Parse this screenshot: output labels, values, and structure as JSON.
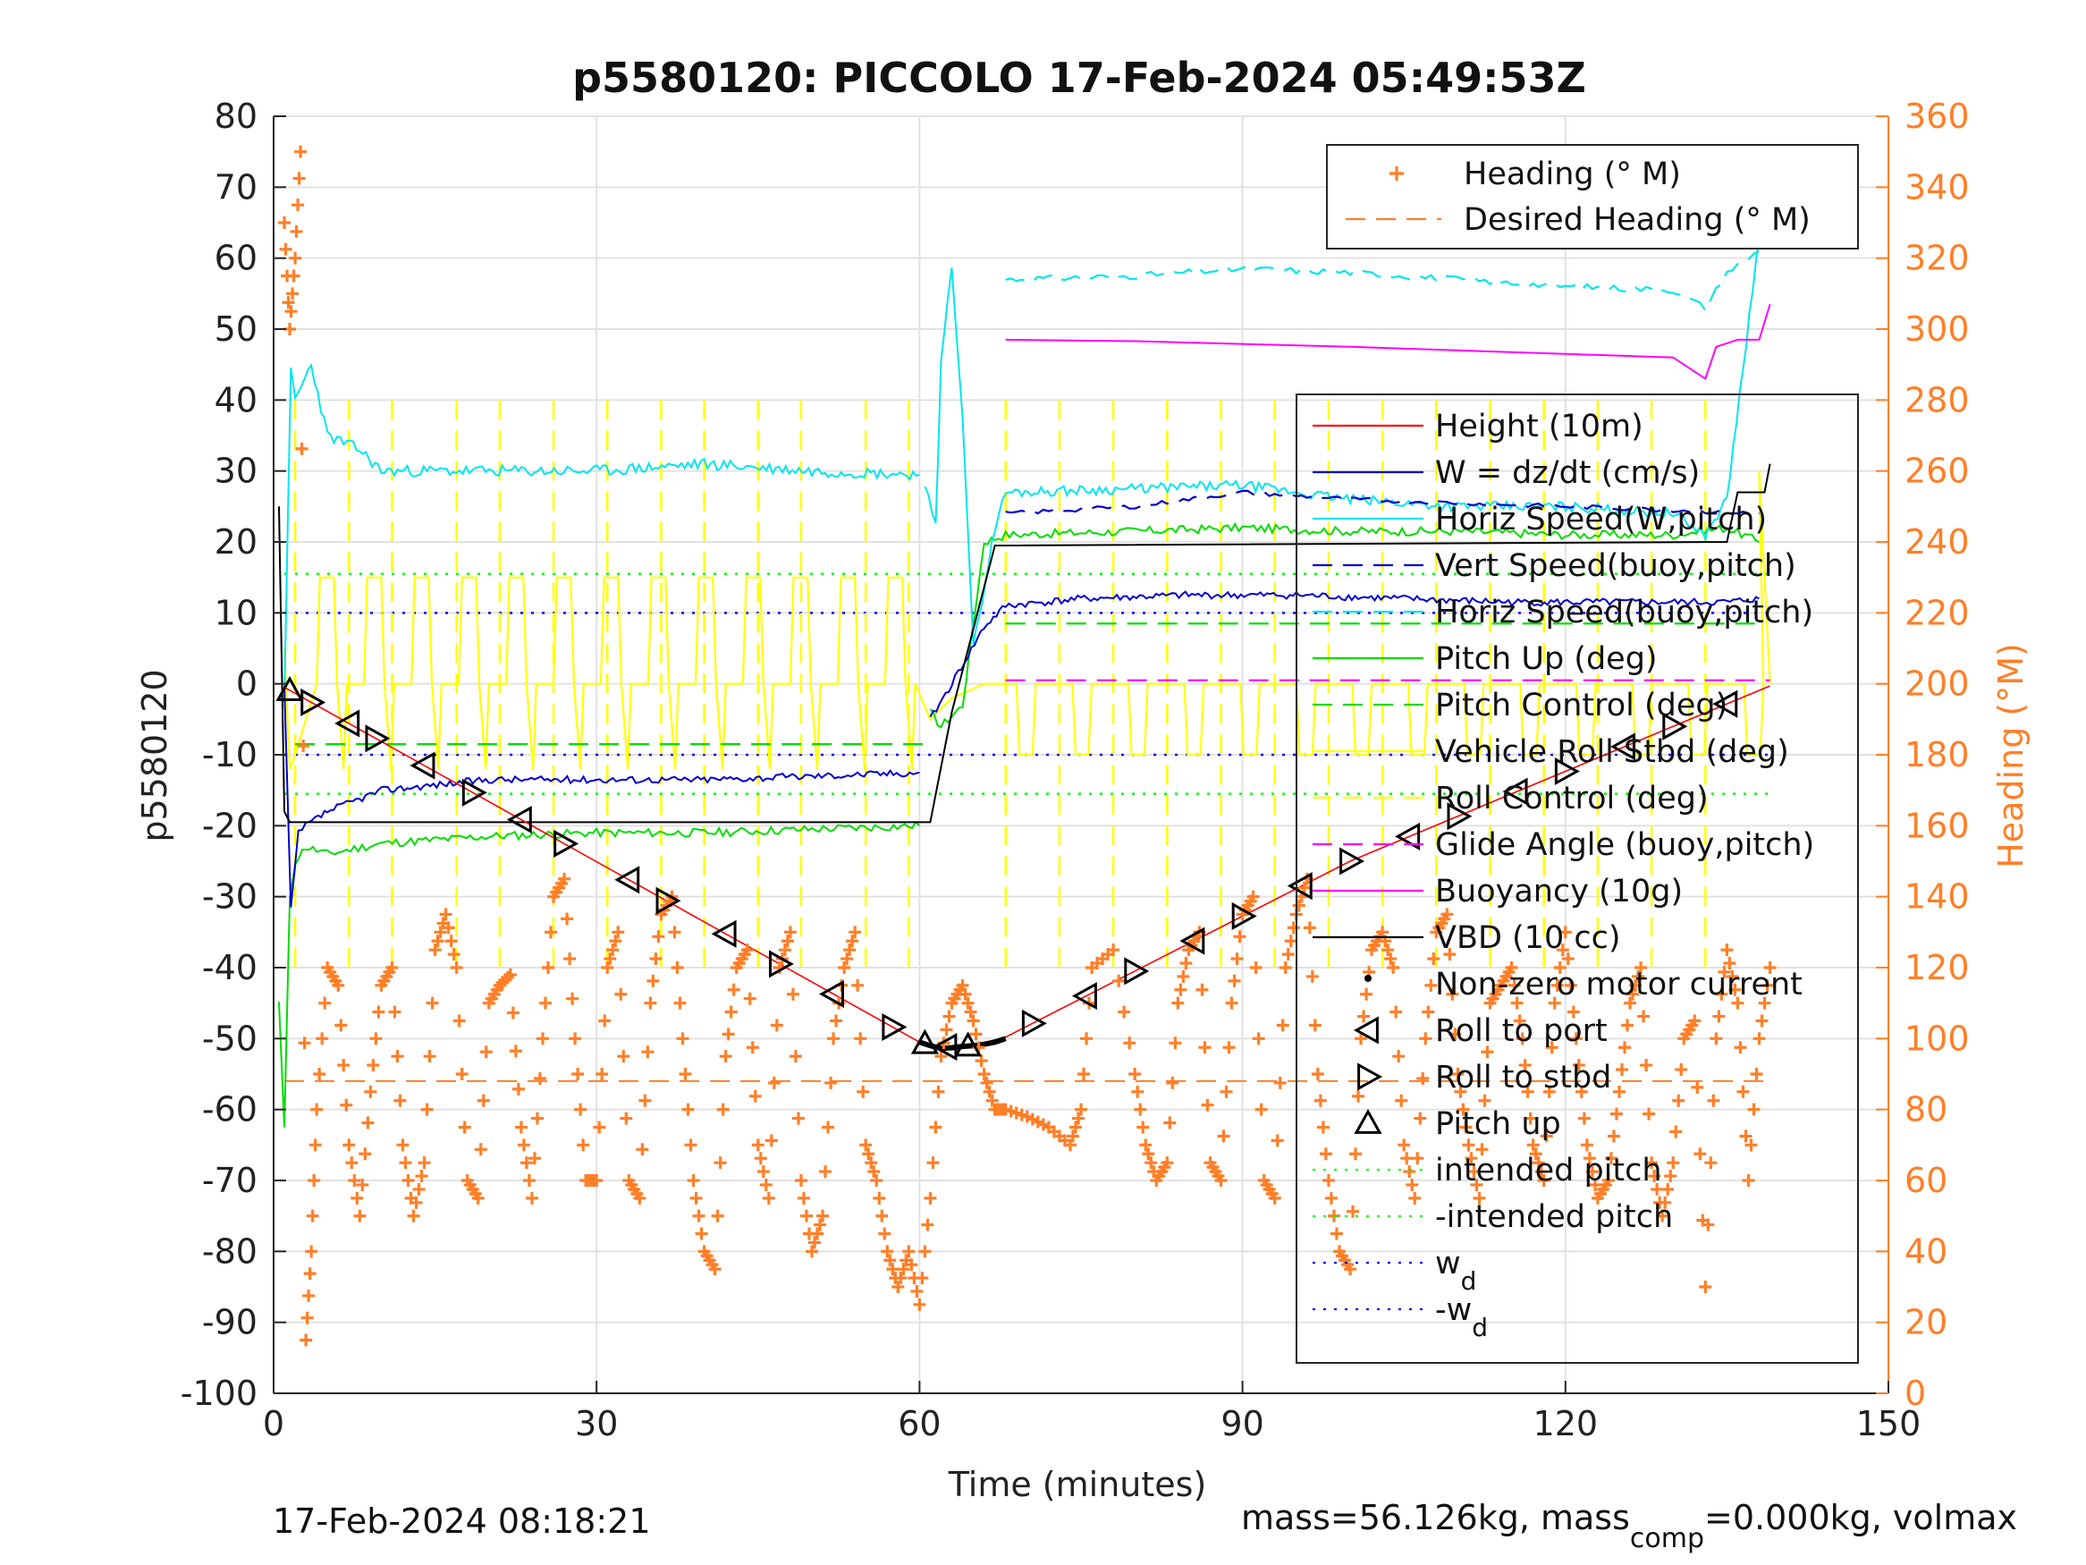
{
  "chart_data": {
    "type": "line",
    "title": "p5580120: PICCOLO 17-Feb-2024 05:49:53Z",
    "xlabel": "Time (minutes)",
    "ylabel": "p5580120",
    "y2label": "Heading (°M)",
    "xlim": [
      0,
      150
    ],
    "ylim": [
      -100,
      80
    ],
    "y2lim": [
      0,
      360
    ],
    "xticks": [
      0,
      30,
      60,
      90,
      120,
      150
    ],
    "yticks": [
      80,
      70,
      60,
      50,
      40,
      30,
      20,
      10,
      0,
      -10,
      -20,
      -30,
      -40,
      -50,
      -60,
      -70,
      -80,
      -90,
      -100
    ],
    "y2ticks": [
      360,
      340,
      320,
      300,
      280,
      260,
      240,
      220,
      200,
      180,
      160,
      140,
      120,
      100,
      80,
      60,
      40,
      20,
      0
    ],
    "grid": true,
    "legend_heading": [
      {
        "label": "Heading (° M)",
        "color": "#ff7f27",
        "marker": "+"
      },
      {
        "label": "Desired Heading (° M)",
        "color": "#ff7f27",
        "style": "dashed"
      }
    ],
    "legend_main": [
      {
        "label": "Height (10m)",
        "color": "#ff0000",
        "style": "solid"
      },
      {
        "label": "W = dz/dt (cm/s)",
        "color": "#0000cc",
        "style": "solid"
      },
      {
        "label": "Horiz Speed(W,pitch)",
        "color": "#00e5ee",
        "style": "solid"
      },
      {
        "label": "Vert Speed(buoy,pitch)",
        "color": "#0000cc",
        "style": "dashed"
      },
      {
        "label": "Horiz Speed(buoy,pitch)",
        "color": "#00e5ee",
        "style": "dashed"
      },
      {
        "label": "Pitch Up (deg)",
        "color": "#00dd00",
        "style": "solid"
      },
      {
        "label": "Pitch Control (deg)",
        "color": "#00dd00",
        "style": "dashed"
      },
      {
        "label": "Vehicle Roll Stbd (deg)",
        "color": "#ffff00",
        "style": "solid"
      },
      {
        "label": "Roll Control (deg)",
        "color": "#ffff00",
        "style": "dashed"
      },
      {
        "label": "Glide Angle (buoy,pitch)",
        "color": "#ff00ff",
        "style": "dashed"
      },
      {
        "label": "Buoyancy (10g)",
        "color": "#ff00ff",
        "style": "solid"
      },
      {
        "label": "VBD (10 cc)",
        "color": "#000000",
        "style": "solid"
      },
      {
        "label": "Non-zero motor current",
        "color": "#000000",
        "marker": "dot"
      },
      {
        "label": "Roll to port",
        "color": "#000000",
        "marker": "tri-left"
      },
      {
        "label": "Roll to stbd",
        "color": "#000000",
        "marker": "tri-right"
      },
      {
        "label": "Pitch up",
        "color": "#000000",
        "marker": "tri-up"
      },
      {
        "label": "intended pitch",
        "color": "#00ff00",
        "style": "dotted"
      },
      {
        "label": "-intended pitch",
        "color": "#00ff00",
        "style": "dotted"
      },
      {
        "label": "w",
        "sub": "d",
        "color": "#0000ff",
        "style": "dotted"
      },
      {
        "label": "-w",
        "sub": "d",
        "color": "#0000ff",
        "style": "dotted"
      }
    ],
    "series": {
      "height": {
        "x": [
          1,
          60,
          62,
          65,
          68,
          100,
          139
        ],
        "y": [
          -0.5,
          -50.5,
          -51.2,
          -51.0,
          -49.8,
          -25,
          -0.3
        ]
      },
      "vbd": {
        "x": [
          0.5,
          1,
          1.5,
          61,
          63,
          67,
          68,
          135,
          136,
          138.5,
          139
        ],
        "y": [
          25,
          -18,
          -19.5,
          -19.5,
          -4,
          19.5,
          19.5,
          20,
          27,
          27,
          31
        ]
      },
      "w_dive": {
        "x": [
          1,
          1.6,
          2.3,
          3,
          5,
          10,
          20,
          30,
          40,
          50,
          60
        ],
        "y": [
          -0.5,
          -32,
          -21,
          -20,
          -18,
          -15,
          -13.5,
          -13.5,
          -13.5,
          -13,
          -12.5
        ]
      },
      "w_climb": {
        "x": [
          61,
          63,
          66,
          68,
          75,
          85,
          95,
          105,
          115,
          125,
          135,
          138
        ],
        "y": [
          -5,
          0,
          8,
          11,
          12,
          12.5,
          12.5,
          12,
          11.5,
          11.5,
          11.5,
          12
        ]
      },
      "horiz_dive": {
        "x": [
          1,
          1.6,
          2,
          3.5,
          5,
          8,
          10,
          20,
          30,
          40,
          50,
          60
        ],
        "y": [
          -2,
          44,
          40,
          45,
          35,
          33,
          30,
          30,
          30,
          31,
          30,
          29.5
        ]
      },
      "horiz_climb": {
        "x": [
          60.5,
          61.5,
          62,
          63,
          64,
          65,
          67,
          68,
          80,
          90,
          100,
          110,
          120,
          130,
          133,
          135,
          138
        ],
        "y": [
          28,
          22,
          45,
          59,
          38,
          5,
          22,
          27,
          27.5,
          28,
          26,
          25,
          25,
          24,
          21,
          26,
          63
        ]
      },
      "pitch_dive": {
        "x": [
          0.5,
          1,
          1.5,
          2,
          3,
          5,
          10,
          20,
          30,
          40,
          50,
          60
        ],
        "y": [
          -45,
          -63,
          -30,
          -25,
          -23,
          -24,
          -22.5,
          -21.5,
          -21,
          -21,
          -20.5,
          -20
        ]
      },
      "pitch_climb": {
        "x": [
          61,
          62,
          64,
          66,
          68,
          80,
          90,
          100,
          110,
          120,
          130,
          135,
          138
        ],
        "y": [
          -4,
          -6,
          -3,
          20,
          21,
          21.5,
          22,
          21.5,
          21.5,
          21,
          21,
          22,
          20
        ]
      },
      "vert_speed_buoy": {
        "x": [
          68,
          80,
          90,
          100,
          110,
          120,
          130,
          138
        ],
        "y": [
          24,
          25,
          27,
          26,
          25.5,
          25,
          24.5,
          24
        ]
      },
      "horiz_speed_buoy": {
        "x": [
          68,
          80,
          90,
          100,
          110,
          120,
          130,
          133,
          135,
          138
        ],
        "y": [
          57,
          57.5,
          58.5,
          58,
          57,
          56,
          55.5,
          53,
          58,
          61
        ]
      },
      "buoyancy": {
        "x": [
          68,
          80,
          100,
          120,
          130,
          132,
          133,
          134,
          136,
          138,
          139
        ],
        "y": [
          48.5,
          48.3,
          47.5,
          46.5,
          46,
          44,
          43,
          47.5,
          48.5,
          48.5,
          53.5
        ]
      },
      "pitch_control": {
        "x": [
          2,
          61
        ],
        "y": [
          -8.5,
          -8.5
        ],
        "x2": [
          68,
          138
        ],
        "y2": [
          8.5,
          8.5
        ]
      },
      "glide_angle": {
        "x": [
          68,
          139
        ],
        "y": [
          0.5,
          0.5
        ]
      },
      "intended_pitch": [
        15.5,
        -15.5
      ],
      "w_d": [
        10,
        -10
      ],
      "roll_control_pulses": [
        2,
        7,
        11,
        17,
        21,
        26,
        31,
        36,
        40,
        45,
        49,
        55,
        59,
        68,
        73,
        78,
        83,
        88,
        93,
        98,
        103,
        108,
        113,
        118,
        123,
        128,
        133
      ],
      "roll_stbd_times": [
        3.5,
        9.5,
        18.5,
        27,
        36.5,
        47,
        57.5,
        70.5,
        80,
        90,
        100,
        110,
        120,
        130
      ],
      "roll_port_times": [
        7,
        14,
        23,
        33,
        42,
        52,
        62.5,
        75.5,
        85.5,
        95.5,
        105.5,
        115.5,
        125.5,
        135
      ],
      "heading_desired": 88,
      "heading": {
        "x": [
          1,
          1.5,
          2,
          2.5,
          3,
          3.5,
          4,
          5,
          6,
          7,
          8,
          9,
          10,
          11,
          12,
          13,
          14,
          15,
          16,
          17,
          18,
          19,
          20,
          21,
          22,
          23,
          24,
          25,
          26,
          27,
          28,
          29,
          30,
          31,
          32,
          33,
          34,
          35,
          36,
          37,
          38,
          39,
          40,
          41,
          42,
          43,
          44,
          45,
          46,
          47,
          48,
          49,
          50,
          51,
          52,
          53,
          54,
          55,
          56,
          57,
          58,
          59,
          60,
          61,
          62,
          63,
          64,
          65,
          66,
          67,
          68,
          70,
          72,
          74,
          75,
          76,
          78,
          80,
          81,
          82,
          83,
          84,
          85,
          86,
          87,
          88,
          89,
          90,
          91,
          92,
          93,
          94,
          95,
          96,
          97,
          98,
          99,
          100,
          101,
          102,
          103,
          104,
          105,
          106,
          107,
          108,
          109,
          110,
          111,
          112,
          113,
          114,
          115,
          116,
          117,
          118,
          119,
          120,
          121,
          122,
          123,
          124,
          125,
          126,
          127,
          128,
          129,
          130,
          131,
          132,
          133,
          134,
          135,
          136,
          137,
          138,
          139
        ],
        "y": [
          330,
          300,
          320,
          350,
          15,
          40,
          80,
          120,
          115,
          70,
          50,
          85,
          115,
          120,
          70,
          50,
          65,
          125,
          135,
          120,
          60,
          55,
          110,
          115,
          118,
          75,
          55,
          100,
          140,
          145,
          100,
          60,
          60,
          120,
          130,
          60,
          55,
          110,
          135,
          140,
          100,
          60,
          40,
          35,
          95,
          120,
          125,
          70,
          55,
          120,
          130,
          60,
          40,
          50,
          100,
          120,
          130,
          70,
          60,
          40,
          30,
          40,
          25,
          55,
          95,
          110,
          115,
          105,
          90,
          80,
          80,
          78,
          75,
          70,
          80,
          120,
          125,
          90,
          70,
          60,
          65,
          110,
          125,
          130,
          65,
          60,
          110,
          135,
          140,
          60,
          55,
          120,
          135,
          145,
          90,
          60,
          40,
          35,
          100,
          125,
          130,
          120,
          70,
          55,
          100,
          130,
          135,
          90,
          70,
          55,
          110,
          115,
          120,
          100,
          70,
          60,
          110,
          130,
          100,
          70,
          55,
          60,
          85,
          110,
          120,
          65,
          50,
          65,
          100,
          105,
          30,
          100,
          125,
          110,
          60,
          100,
          120
        ]
      }
    },
    "footer_left": "17-Feb-2024 08:18:21",
    "footer_right_parts": [
      "mass=56.126kg, mass",
      "comp",
      "=0.000kg, volmax"
    ]
  }
}
